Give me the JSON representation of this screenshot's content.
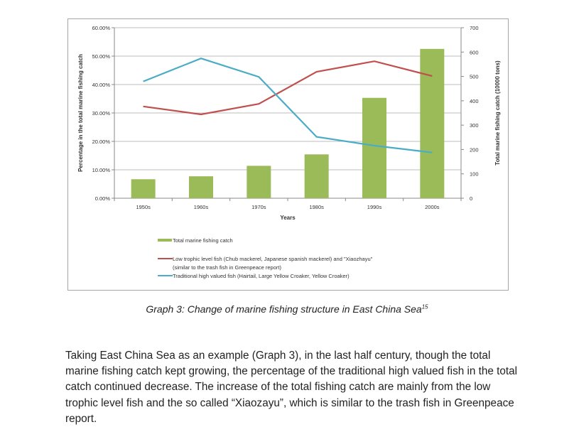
{
  "chart_data": {
    "type": "bar+line",
    "categories": [
      "1950s",
      "1960s",
      "1970s",
      "1980s",
      "1990s",
      "2000s"
    ],
    "xlabel": "Years",
    "ylabel_left": "Percentage in the total marine fishing catch",
    "ylabel_right": "Total marine fishing catch  (10000 tons)",
    "ylim_left": [
      0,
      60
    ],
    "ylim_right": [
      0,
      700
    ],
    "left_ticks": [
      "0.00%",
      "10.00%",
      "20.00%",
      "30.00%",
      "40.00%",
      "50.00%",
      "60.00%"
    ],
    "right_ticks": [
      "0",
      "100",
      "200",
      "300",
      "400",
      "500",
      "600",
      "700"
    ],
    "grid": true,
    "legend_position": "bottom",
    "series": [
      {
        "name": "Total marine fishing catch",
        "type": "bar",
        "axis": "right",
        "color": "#9bbb59",
        "values": [
          78,
          90,
          133,
          180,
          412,
          613
        ]
      },
      {
        "name": "Low trophic level fish (Chub mackerel, Japanese spanish mackerel) and \"Xiaozhayu\"",
        "name_line2": "(similar to the trash fish in Greenpeace report)",
        "type": "line",
        "axis": "left",
        "color": "#c0504d",
        "values": [
          32.3,
          29.5,
          33.2,
          44.5,
          48.2,
          43.0
        ]
      },
      {
        "name": "Traditional high valued fish (Hairtail, Large Yellow Croaker, Yellow Croaker)",
        "type": "line",
        "axis": "left",
        "color": "#4bacc6",
        "values": [
          41.1,
          49.2,
          42.7,
          21.6,
          18.5,
          16.1
        ]
      }
    ]
  },
  "caption": {
    "text": "Graph 3: Change of marine fishing structure in East China Sea",
    "footnote": "15"
  },
  "paragraph": "Taking East China Sea as an example (Graph 3), in the last half century, though the total marine fishing catch kept growing, the percentage of the traditional high valued fish in the total catch continued decrease. The increase of the total fishing catch are mainly from the low trophic level fish and the so called “Xiaozayu”, which is similar to the trash fish in Greenpeace report."
}
